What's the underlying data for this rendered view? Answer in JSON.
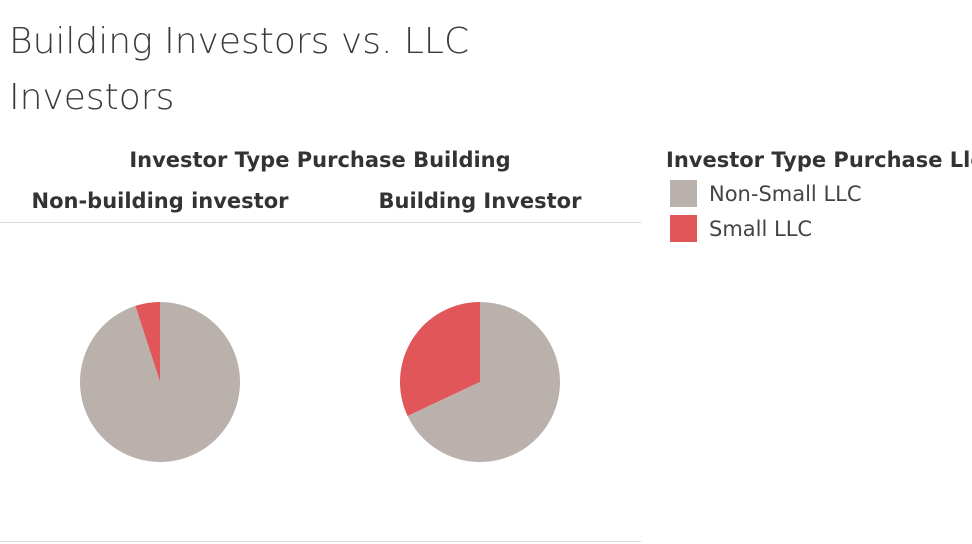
{
  "title": "Building Investors vs. LLC Investors",
  "colors": {
    "non_small_llc": "#bab0ac",
    "small_llc": "#e15759"
  },
  "chart_data": {
    "type": "pie",
    "title": "Building Investors vs. LLC Investors",
    "column_header": "Investor Type Purchase Building",
    "legend_title": "Investor Type Purchase Llc",
    "legend_position": "right",
    "legend": [
      "Non-Small LLC",
      "Small LLC"
    ],
    "panes": [
      {
        "label": "Non-building investor",
        "slices": [
          {
            "name": "Non-Small LLC",
            "value": 95,
            "color": "#bab0ac"
          },
          {
            "name": "Small LLC",
            "value": 5,
            "color": "#e15759"
          }
        ]
      },
      {
        "label": "Building Investor",
        "slices": [
          {
            "name": "Non-Small LLC",
            "value": 68,
            "color": "#bab0ac"
          },
          {
            "name": "Small LLC",
            "value": 32,
            "color": "#e15759"
          }
        ]
      }
    ]
  }
}
